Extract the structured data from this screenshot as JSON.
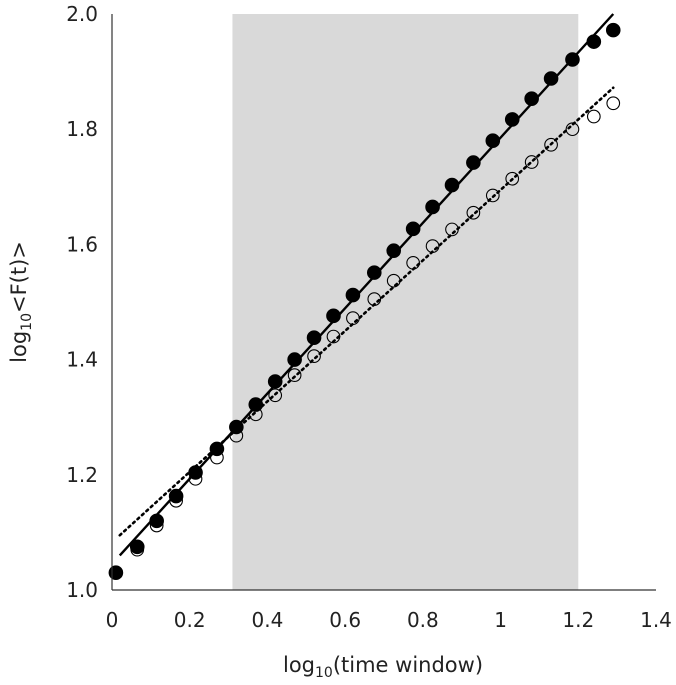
{
  "chart_data": {
    "type": "scatter",
    "xlabel": {
      "prefix": "log",
      "sub": "10",
      "suffix": "(time window)"
    },
    "ylabel": {
      "prefix": "log",
      "sub": "10",
      "suffix": "<F(t)>"
    },
    "xlim": [
      0,
      1.4
    ],
    "ylim": [
      1.0,
      2.0
    ],
    "xticks": [
      0,
      0.2,
      0.4,
      0.6,
      0.8,
      1.0,
      1.2,
      1.4
    ],
    "xtick_labels": [
      "0",
      "0.2",
      "0.4",
      "0.6",
      "0.8",
      "1",
      "1.2",
      "1.4"
    ],
    "yticks": [
      1.0,
      1.2,
      1.4,
      1.6,
      1.8,
      2.0
    ],
    "ytick_labels": [
      "1.0",
      "1.2",
      "1.4",
      "1.6",
      "1.8",
      "2.0"
    ],
    "grid": false,
    "shaded_region": {
      "x": [
        0.31,
        1.2
      ],
      "color": "#d9d9d9"
    },
    "series": [
      {
        "marker": "filled-circle",
        "color": "#000000",
        "x": [
          0.01,
          0.065,
          0.115,
          0.165,
          0.215,
          0.27,
          0.32,
          0.37,
          0.42,
          0.47,
          0.52,
          0.57,
          0.62,
          0.675,
          0.725,
          0.775,
          0.825,
          0.875,
          0.93,
          0.98,
          1.03,
          1.08,
          1.13,
          1.185,
          1.24,
          1.29
        ],
        "y": [
          1.03,
          1.075,
          1.12,
          1.163,
          1.204,
          1.245,
          1.283,
          1.322,
          1.362,
          1.4,
          1.438,
          1.476,
          1.512,
          1.551,
          1.589,
          1.627,
          1.665,
          1.703,
          1.742,
          1.78,
          1.817,
          1.853,
          1.888,
          1.921,
          1.952,
          1.972
        ]
      },
      {
        "marker": "open-circle",
        "color": "#000000",
        "x": [
          0.065,
          0.115,
          0.165,
          0.215,
          0.27,
          0.32,
          0.37,
          0.42,
          0.47,
          0.52,
          0.57,
          0.62,
          0.675,
          0.725,
          0.775,
          0.825,
          0.875,
          0.93,
          0.98,
          1.03,
          1.08,
          1.13,
          1.185,
          1.24,
          1.29
        ],
        "y": [
          1.07,
          1.112,
          1.155,
          1.193,
          1.23,
          1.268,
          1.305,
          1.338,
          1.373,
          1.406,
          1.44,
          1.472,
          1.505,
          1.537,
          1.568,
          1.597,
          1.626,
          1.655,
          1.685,
          1.714,
          1.743,
          1.773,
          1.8,
          1.822,
          1.845
        ]
      }
    ],
    "fit_lines": [
      {
        "style": "solid",
        "color": "#000000",
        "x": [
          0.02,
          1.29
        ],
        "y": [
          1.06,
          2.0
        ]
      },
      {
        "style": "dotted",
        "color": "#000000",
        "x": [
          0.02,
          1.29
        ],
        "y": [
          1.095,
          1.872
        ]
      }
    ]
  }
}
